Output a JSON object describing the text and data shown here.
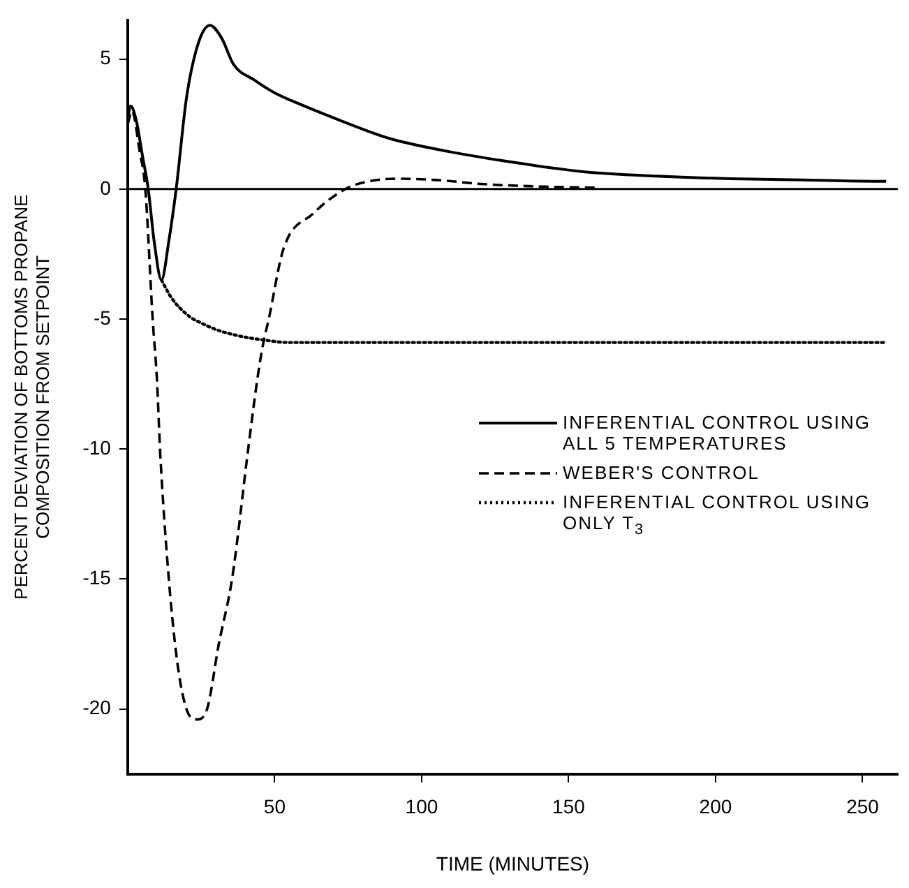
{
  "chart_data": {
    "type": "line",
    "xlabel": "TIME (MINUTES)",
    "ylabel": "PERCENT DEVIATION OF BOTTOMS PROPANE\nCOMPOSITION FROM SETPOINT",
    "xlim": [
      0,
      262
    ],
    "ylim": [
      -22.5,
      6.5
    ],
    "xticks": [
      50,
      100,
      150,
      200,
      250
    ],
    "yticks": [
      5,
      0,
      -5,
      -10,
      -15,
      -20
    ],
    "grid": false,
    "legend": "right",
    "marker": "none",
    "ref_lines": [
      {
        "axis": "y",
        "value": 0,
        "color": "#000000"
      }
    ],
    "series": [
      {
        "name": "INFERENTIAL CONTROL USING ALL 5 TEMPERATURES",
        "color": "#000000",
        "line_style": "solid",
        "x": [
          0,
          1,
          3,
          5,
          7,
          9,
          11.5,
          14,
          16.5,
          20,
          24,
          28,
          32,
          36,
          43,
          50,
          60,
          71,
          89,
          109,
          130,
          155,
          180,
          205,
          230,
          254,
          258
        ],
        "values": [
          2.7,
          3.2,
          2.6,
          1.3,
          0,
          -2,
          -3.5,
          -2,
          0,
          3.5,
          5.6,
          6.3,
          5.8,
          4.8,
          4.2,
          3.7,
          3.2,
          2.7,
          1.95,
          1.45,
          1.05,
          0.67,
          0.5,
          0.4,
          0.35,
          0.3,
          0.3
        ]
      },
      {
        "name": "WEBER'S CONTROL",
        "color": "#000000",
        "line_style": "dashed",
        "x": [
          0,
          1.5,
          4,
          6,
          8.5,
          10,
          11,
          14,
          17,
          20,
          23.5,
          27,
          31,
          35.5,
          41,
          44,
          46,
          48,
          53,
          63,
          74,
          82,
          92,
          105,
          120,
          140,
          160
        ],
        "values": [
          2.5,
          3,
          1.5,
          0,
          -5,
          -7.4,
          -10,
          -15,
          -18.3,
          -20,
          -20.4,
          -20,
          -17.5,
          -15,
          -10,
          -7.4,
          -6,
          -5,
          -2.3,
          -0.95,
          0,
          0.3,
          0.4,
          0.35,
          0.2,
          0.1,
          0.05
        ]
      },
      {
        "name": "INFERENTIAL CONTROL USING ONLY T$_{3}$",
        "color": "#000000",
        "line_style": "dotted",
        "x": [
          11.5,
          15,
          21,
          25,
          30,
          38,
          46,
          55,
          70,
          100,
          150,
          200,
          258
        ],
        "values": [
          -3.5,
          -4.2,
          -4.9,
          -5.15,
          -5.4,
          -5.65,
          -5.8,
          -5.9,
          -5.9,
          -5.9,
          -5.9,
          -5.9,
          -5.9
        ]
      }
    ]
  }
}
